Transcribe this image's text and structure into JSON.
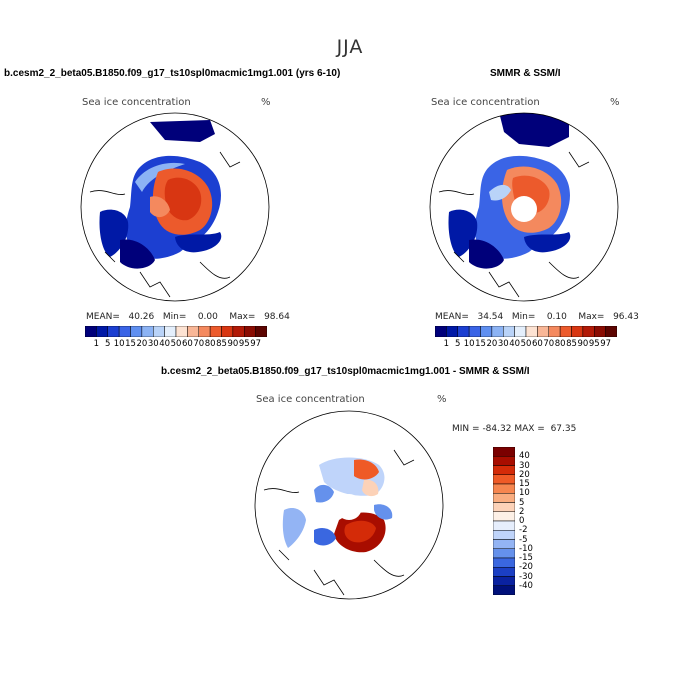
{
  "title": "JJA",
  "panels": {
    "model": {
      "run_title": "b.cesm2_2_beta05.B1850.f09_g17_ts10spl0macmic1mg1.001 (yrs 6-10)",
      "label": "Sea ice concentration",
      "unit": "%",
      "mean_label": "MEAN=",
      "mean": "40.26",
      "min_label": "Min=",
      "min": "0.00",
      "max_label": "Max=",
      "max": "98.64"
    },
    "obs": {
      "run_title": "SMMR & SSM/I",
      "label": "Sea ice concentration",
      "unit": "%",
      "mean_label": "MEAN=",
      "mean": "34.54",
      "min_label": "Min=",
      "min": "0.10",
      "max_label": "Max=",
      "max": "96.43"
    },
    "diff": {
      "run_title": "b.cesm2_2_beta05.B1850.f09_g17_ts10spl0macmic1mg1.001 - SMMR & SSM/I",
      "label": "Sea ice concentration",
      "unit": "%",
      "min_label": "MIN =",
      "min": "-84.32",
      "max_label": "MAX =",
      "max": "67.35"
    }
  },
  "colorbar_abs": {
    "ticks": [
      "1",
      "5",
      "10",
      "15",
      "20",
      "30",
      "40",
      "50",
      "60",
      "70",
      "80",
      "85",
      "90",
      "95",
      "97"
    ],
    "colors": [
      "#00007a",
      "#0019a6",
      "#1c3fd1",
      "#3a64e6",
      "#5f8ff0",
      "#8cb3f4",
      "#b9d3f8",
      "#e4effc",
      "#fde3d3",
      "#f9b797",
      "#f4895e",
      "#ec5a2c",
      "#d83612",
      "#b21a07",
      "#8a0c02",
      "#5c0400"
    ]
  },
  "colorbar_diff": {
    "ticks": [
      "40",
      "30",
      "20",
      "15",
      "10",
      "5",
      "2",
      "0",
      "-2",
      "-5",
      "-10",
      "-15",
      "-20",
      "-30",
      "-40"
    ],
    "colors": [
      "#7a0000",
      "#a80d00",
      "#d42b08",
      "#ef5a26",
      "#f6864f",
      "#f9ad80",
      "#fcd2b8",
      "#fdf0e6",
      "#e6eefc",
      "#bfd4fa",
      "#93b4f4",
      "#6591ec",
      "#3a67e0",
      "#1b3fc4",
      "#0a22a0",
      "#00107a"
    ]
  }
}
